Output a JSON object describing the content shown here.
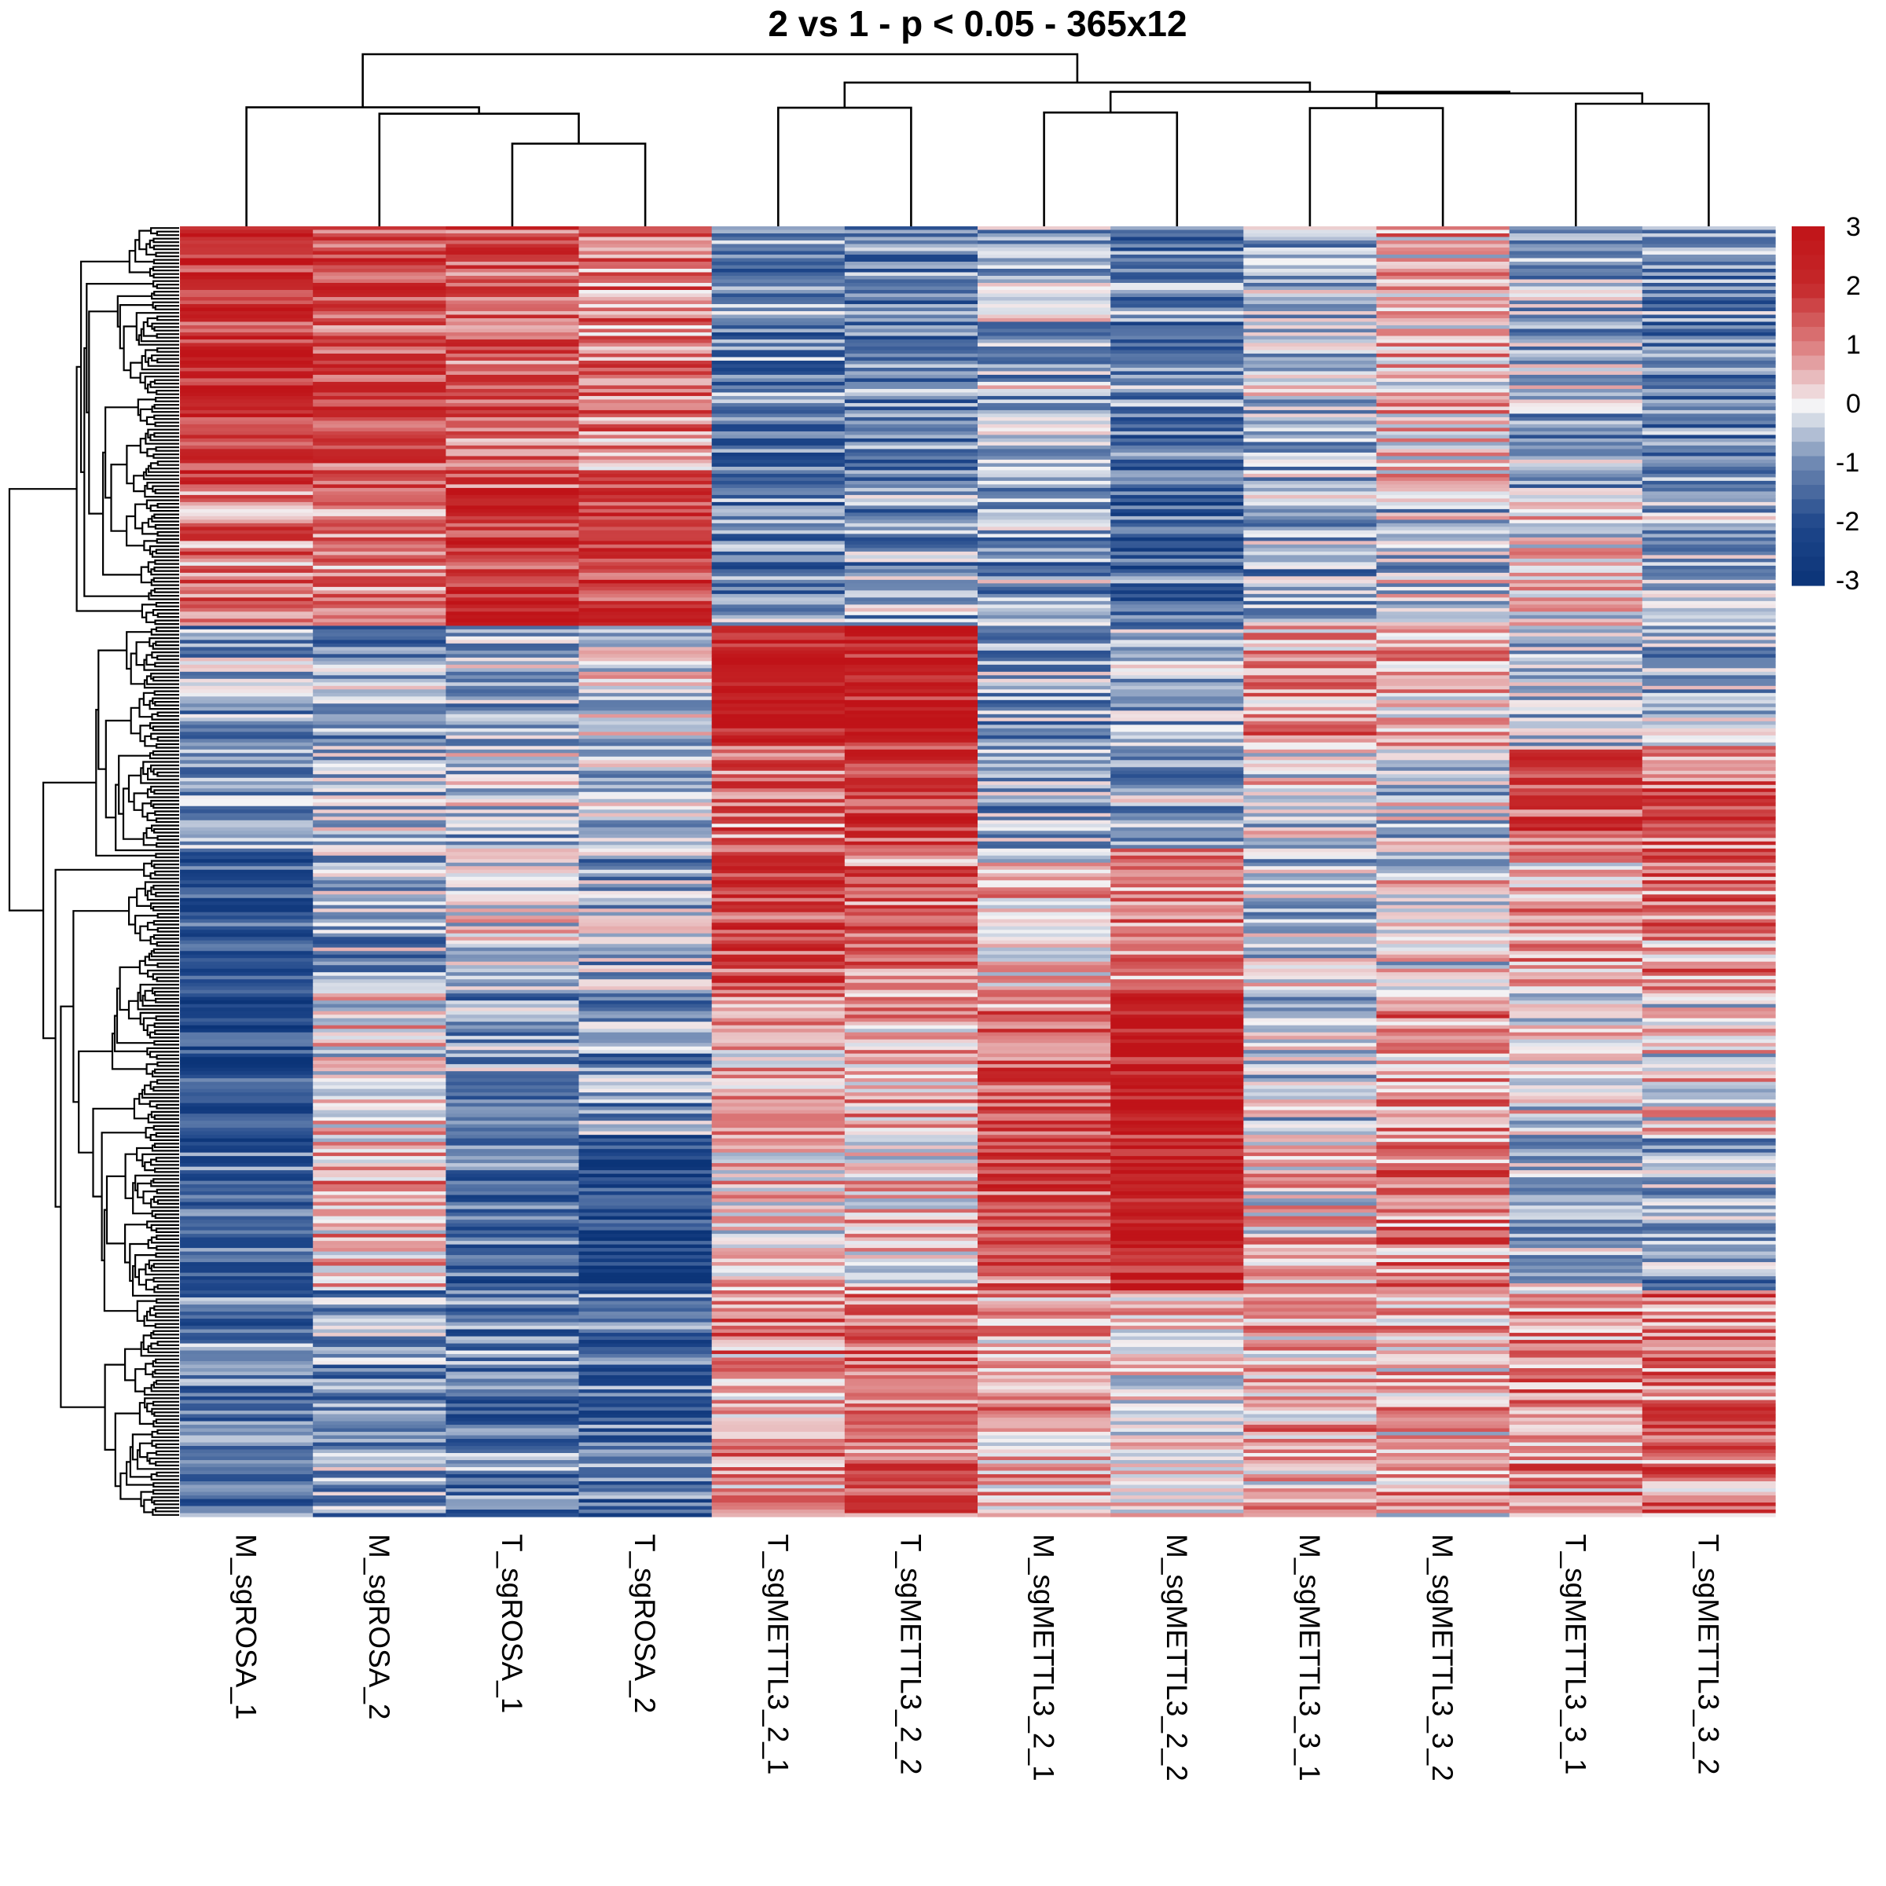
{
  "chart_data": {
    "type": "heatmap",
    "title": "2 vs 1 - p < 0.05 - 365x12",
    "n_rows": 365,
    "n_cols": 12,
    "columns": [
      "M_sgROSA_1",
      "M_sgROSA_2",
      "T_sgROSA_1",
      "T_sgROSA_2",
      "T_sgMETTL3_2_1",
      "T_sgMETTL3_2_2",
      "M_sgMETTL3_2_1",
      "M_sgMETTL3_2_2",
      "M_sgMETTL3_3_1",
      "M_sgMETTL3_3_2",
      "T_sgMETTL3_3_1",
      "T_sgMETTL3_3_2"
    ],
    "value_range": [
      -3,
      3
    ],
    "row_blocks": [
      {
        "rows": [
          0,
          73
        ],
        "col_means": [
          2.2,
          1.5,
          1.4,
          1.0,
          -1.2,
          -1.2,
          -0.6,
          -1.2,
          -0.5,
          0.5,
          -0.6,
          -1.1
        ]
      },
      {
        "rows": [
          74,
          112
        ],
        "col_means": [
          1.2,
          1.0,
          2.2,
          1.8,
          -1.0,
          -0.8,
          -0.8,
          -1.6,
          -0.6,
          -0.3,
          0.2,
          -0.5
        ]
      },
      {
        "rows": [
          113,
          146
        ],
        "col_means": [
          -0.8,
          -0.8,
          -0.6,
          -0.2,
          2.6,
          2.6,
          -0.8,
          -0.7,
          0.8,
          0.6,
          -0.4,
          -0.5
        ]
      },
      {
        "rows": [
          147,
          175
        ],
        "col_means": [
          -0.7,
          -0.6,
          -0.5,
          -0.3,
          1.3,
          1.8,
          -0.6,
          -0.6,
          0.0,
          -0.4,
          1.6,
          1.4
        ]
      },
      {
        "rows": [
          176,
          215
        ],
        "col_means": [
          -2.0,
          -0.7,
          -0.2,
          -0.6,
          1.6,
          1.2,
          0.3,
          0.7,
          -0.3,
          0.0,
          0.6,
          1.0
        ]
      },
      {
        "rows": [
          216,
          256
        ],
        "col_means": [
          -2.2,
          0.2,
          -0.8,
          -0.9,
          0.6,
          0.6,
          1.4,
          2.5,
          -0.2,
          0.8,
          0.0,
          0.2
        ]
      },
      {
        "rows": [
          257,
          300
        ],
        "col_means": [
          -1.6,
          0.5,
          -1.5,
          -2.2,
          0.2,
          0.4,
          1.6,
          2.5,
          0.3,
          1.1,
          -0.6,
          -0.7
        ]
      },
      {
        "rows": [
          301,
          364
        ],
        "col_means": [
          -1.3,
          -0.8,
          -1.3,
          -1.5,
          0.9,
          1.3,
          0.7,
          0.3,
          0.6,
          0.5,
          1.0,
          1.2
        ]
      }
    ],
    "row_variation": 1.1,
    "column_dendrogram": {
      "merges": [
        {
          "a": [
            2
          ],
          "b": [
            3
          ],
          "height": 0.207
        },
        {
          "a": [
            1
          ],
          "b": [
            2,
            3
          ],
          "height": 0.282
        },
        {
          "a": [
            0
          ],
          "b": [
            1,
            2,
            3
          ],
          "height": 0.298
        },
        {
          "a": [
            4
          ],
          "b": [
            5
          ],
          "height": 0.297
        },
        {
          "a": [
            6
          ],
          "b": [
            7
          ],
          "height": 0.285
        },
        {
          "a": [
            8
          ],
          "b": [
            9
          ],
          "height": 0.296
        },
        {
          "a": [
            10
          ],
          "b": [
            11
          ],
          "height": 0.307
        },
        {
          "a": [
            8,
            9
          ],
          "b": [
            10,
            11
          ],
          "height": 0.333
        },
        {
          "a": [
            6,
            7
          ],
          "b": [
            8,
            9,
            10,
            11
          ],
          "height": 0.337
        },
        {
          "a": [
            4,
            5
          ],
          "b": [
            6,
            7,
            8,
            9,
            10,
            11
          ],
          "height": 0.36
        },
        {
          "a": [
            0,
            1,
            2,
            3
          ],
          "b": [
            4,
            5,
            6,
            7,
            8,
            9,
            10,
            11
          ],
          "height": 0.431
        }
      ]
    },
    "row_dendrogram": {
      "top_split_row": 113
    },
    "colorbar": {
      "ticks": [
        "3",
        "2",
        "1",
        "0",
        "-1",
        "-2",
        "-3"
      ],
      "tick_values": [
        3,
        2,
        1,
        0,
        -1,
        -2,
        -3
      ],
      "colors": {
        "low": "#0b3478",
        "mid": "#f3f3f5",
        "high": "#c01318"
      },
      "steps": 25
    },
    "legend_placement": "right"
  }
}
